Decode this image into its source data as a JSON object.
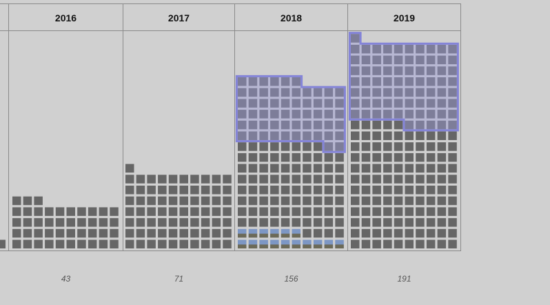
{
  "colors": {
    "background": "#d0d0d0",
    "grid_line": "#8a8a8a",
    "cell": "#666666",
    "selection_fill": "#9a9ad6",
    "selection_stroke": "#8484d8",
    "thumb_sky": "#7d97c4",
    "thumb_ground": "#6c6a58"
  },
  "chart_data": {
    "type": "waffle",
    "grid": true,
    "categories": [
      "2016",
      "2017",
      "2018",
      "2019"
    ],
    "values": [
      43,
      71,
      156,
      191
    ],
    "partial_left_column_cells": 1,
    "highlighted_cells": [
      0,
      0,
      58,
      76
    ],
    "thumbnail_cells": [
      0,
      0,
      16,
      0
    ]
  }
}
